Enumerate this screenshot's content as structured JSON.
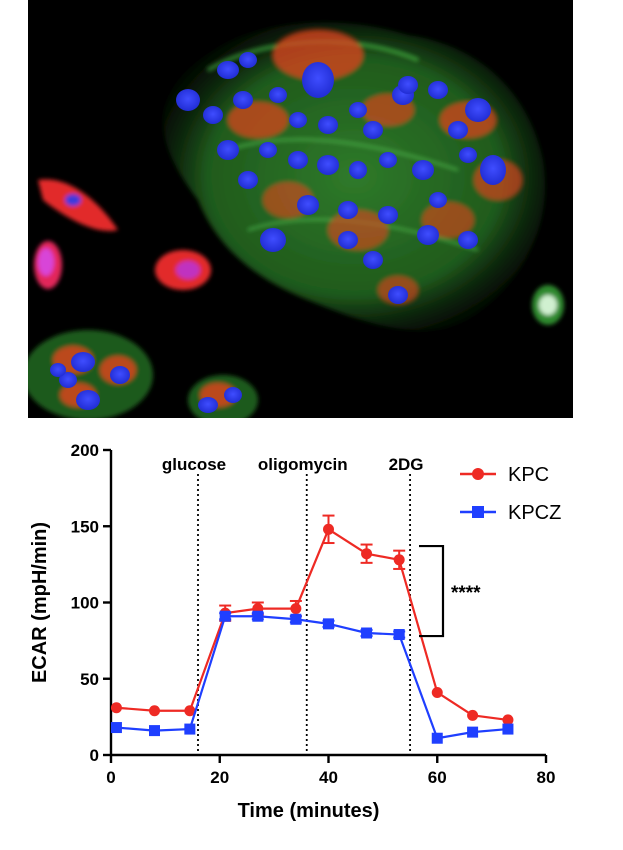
{
  "image": {
    "description_icon": "fluorescence-micrograph"
  },
  "chart_data": {
    "type": "line",
    "xlabel": "Time (minutes)",
    "ylabel": "ECAR (mpH/min)",
    "xlim": [
      0,
      80
    ],
    "ylim": [
      0,
      200
    ],
    "xticks": [
      0,
      20,
      40,
      60,
      80
    ],
    "yticks": [
      0,
      50,
      100,
      150,
      200
    ],
    "grid": false,
    "legend_position": "top-right",
    "events": [
      {
        "label": "glucose",
        "x": 16
      },
      {
        "label": "oligomycin",
        "x": 36
      },
      {
        "label": "2DG",
        "x": 55
      }
    ],
    "series": [
      {
        "name": "KPC",
        "color": "#ee2a24",
        "marker": "circle",
        "x": [
          1,
          8,
          14.5,
          21,
          27,
          34,
          40,
          47,
          53,
          60,
          66.5,
          73
        ],
        "y": [
          31,
          29,
          29,
          93,
          96,
          96,
          148,
          132,
          128,
          41,
          26,
          23
        ],
        "err": [
          0,
          0,
          0,
          5,
          4,
          5,
          9,
          6,
          6,
          0,
          0,
          0
        ]
      },
      {
        "name": "KPCZ",
        "color": "#1f3fff",
        "marker": "square",
        "x": [
          1,
          8,
          14.5,
          21,
          27,
          34,
          40,
          47,
          53,
          60,
          66.5,
          73
        ],
        "y": [
          18,
          16,
          17,
          91,
          91,
          89,
          86,
          80,
          79,
          11,
          15,
          17
        ],
        "err": [
          0,
          0,
          0,
          2,
          2,
          2,
          2,
          2,
          2,
          0,
          0,
          0
        ]
      }
    ],
    "annotation": {
      "text": "****",
      "y_range": [
        78,
        137
      ]
    }
  }
}
